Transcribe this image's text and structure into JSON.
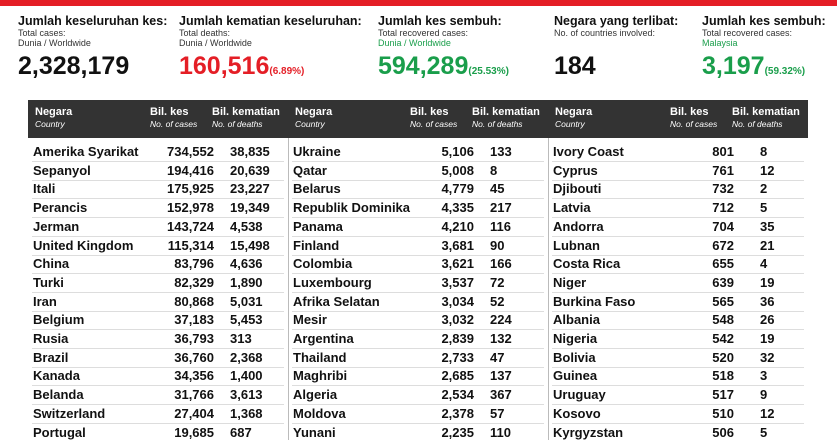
{
  "stats": [
    {
      "title": "Jumlah keseluruhan kes:",
      "label": "Total cases:",
      "scope": "Dunia / Worldwide",
      "value": "2,328,179"
    },
    {
      "title": "Jumlah kematian keseluruhan:",
      "label": "Total deaths:",
      "scope": "Dunia / Worldwide",
      "value": "160,516",
      "percent": "(6.89%)"
    },
    {
      "title": "Jumlah kes sembuh:",
      "label": "Total recovered cases:",
      "scope": "Dunia / Worldwide",
      "value": "594,289",
      "percent": "(25.53%)"
    },
    {
      "title": "Negara yang terlibat:",
      "label": "No. of countries involved:",
      "value": "184"
    },
    {
      "title": "Jumlah kes sembuh:",
      "label": "Total recovered cases:",
      "scope": "Malaysia",
      "value": "3,197",
      "percent": "(59.32%)"
    }
  ],
  "table_header": {
    "country": "Negara",
    "country_en": "Country",
    "cases": "Bil. kes",
    "cases_en": "No. of cases",
    "deaths": "Bil. kematian",
    "deaths_en": "No. of deaths"
  },
  "tables": [
    {
      "rows": [
        [
          "Amerika Syarikat",
          "734,552",
          "38,835"
        ],
        [
          "Sepanyol",
          "194,416",
          "20,639"
        ],
        [
          "Itali",
          "175,925",
          "23,227"
        ],
        [
          "Perancis",
          "152,978",
          "19,349"
        ],
        [
          "Jerman",
          "143,724",
          "4,538"
        ],
        [
          "United Kingdom",
          "115,314",
          "15,498"
        ],
        [
          "China",
          "83,796",
          "4,636"
        ],
        [
          "Turki",
          "82,329",
          "1,890"
        ],
        [
          "Iran",
          "80,868",
          "5,031"
        ],
        [
          "Belgium",
          "37,183",
          "5,453"
        ],
        [
          "Rusia",
          "36,793",
          "313"
        ],
        [
          "Brazil",
          "36,760",
          "2,368"
        ],
        [
          "Kanada",
          "34,356",
          "1,400"
        ],
        [
          "Belanda",
          "31,766",
          "3,613"
        ],
        [
          "Switzerland",
          "27,404",
          "1,368"
        ],
        [
          "Portugal",
          "19,685",
          "687"
        ]
      ]
    },
    {
      "rows": [
        [
          "Ukraine",
          "5,106",
          "133"
        ],
        [
          "Qatar",
          "5,008",
          "8"
        ],
        [
          "Belarus",
          "4,779",
          "45"
        ],
        [
          "Republik Dominika",
          "4,335",
          "217"
        ],
        [
          "Panama",
          "4,210",
          "116"
        ],
        [
          "Finland",
          "3,681",
          "90"
        ],
        [
          "Colombia",
          "3,621",
          "166"
        ],
        [
          "Luxembourg",
          "3,537",
          "72"
        ],
        [
          "Afrika Selatan",
          "3,034",
          "52"
        ],
        [
          "Mesir",
          "3,032",
          "224"
        ],
        [
          "Argentina",
          "2,839",
          "132"
        ],
        [
          "Thailand",
          "2,733",
          "47"
        ],
        [
          "Maghribi",
          "2,685",
          "137"
        ],
        [
          "Algeria",
          "2,534",
          "367"
        ],
        [
          "Moldova",
          "2,378",
          "57"
        ],
        [
          "Yunani",
          "2,235",
          "110"
        ]
      ]
    },
    {
      "rows": [
        [
          "Ivory Coast",
          "801",
          "8"
        ],
        [
          "Cyprus",
          "761",
          "12"
        ],
        [
          "Djibouti",
          "732",
          "2"
        ],
        [
          "Latvia",
          "712",
          "5"
        ],
        [
          "Andorra",
          "704",
          "35"
        ],
        [
          "Lubnan",
          "672",
          "21"
        ],
        [
          "Costa Rica",
          "655",
          "4"
        ],
        [
          "Niger",
          "639",
          "19"
        ],
        [
          "Burkina Faso",
          "565",
          "36"
        ],
        [
          "Albania",
          "548",
          "26"
        ],
        [
          "Nigeria",
          "542",
          "19"
        ],
        [
          "Bolivia",
          "520",
          "32"
        ],
        [
          "Guinea",
          "518",
          "3"
        ],
        [
          "Uruguay",
          "517",
          "9"
        ],
        [
          "Kosovo",
          "510",
          "12"
        ],
        [
          "Kyrgyzstan",
          "506",
          "5"
        ]
      ]
    }
  ]
}
